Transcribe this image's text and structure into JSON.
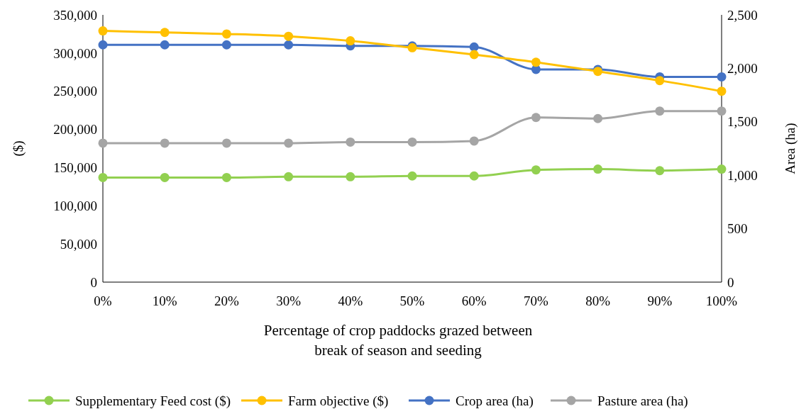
{
  "chart_data": {
    "type": "line",
    "xlabel": "Percentage of crop paddocks grazed between break of season and seeding",
    "ylabel": "($)",
    "y2label": "Area (ha)",
    "categories": [
      "0%",
      "10%",
      "20%",
      "30%",
      "40%",
      "50%",
      "60%",
      "70%",
      "80%",
      "90%",
      "100%"
    ],
    "series": [
      {
        "name": "Supplementary Feed cost ($)",
        "color": "#92d050",
        "values": [
          137000,
          137000,
          137000,
          138000,
          138000,
          139000,
          139000,
          147000,
          148000,
          146000,
          148000
        ]
      },
      {
        "name": "Farm objective ($)",
        "color": "#ffc000",
        "values": [
          329000,
          327000,
          325000,
          322000,
          316000,
          307000,
          298000,
          288000,
          276000,
          264000,
          250000
        ]
      },
      {
        "name": "Crop area (ha)",
        "color": "#4472c4",
        "axis": "y2",
        "values": [
          2220,
          2220,
          2220,
          2220,
          2210,
          2210,
          2200,
          1990,
          1990,
          1920,
          1920
        ]
      },
      {
        "name": "Pasture area (ha)",
        "color": "#a5a5a5",
        "axis": "y2",
        "values": [
          1300,
          1300,
          1300,
          1300,
          1310,
          1310,
          1320,
          1540,
          1530,
          1600,
          1600
        ]
      }
    ],
    "ylim": [
      0,
      350000
    ],
    "yticks": [
      {
        "value": 0,
        "label": "0"
      },
      {
        "value": 50000,
        "label": "50,000"
      },
      {
        "value": 100000,
        "label": "100,000"
      },
      {
        "value": 150000,
        "label": "150,000"
      },
      {
        "value": 200000,
        "label": "200,000"
      },
      {
        "value": 250000,
        "label": "250,000"
      },
      {
        "value": 300000,
        "label": "300,000"
      },
      {
        "value": 350000,
        "label": "350,000"
      }
    ],
    "y2lim": [
      0,
      2500
    ],
    "y2ticks": [
      {
        "value": 0,
        "label": "0"
      },
      500,
      {
        "value": 1000,
        "label": "1,000"
      },
      {
        "value": 1500,
        "label": "1,500"
      },
      {
        "value": 2000,
        "label": "2,000"
      },
      {
        "value": 2500,
        "label": "2,500"
      }
    ],
    "marker": "circle",
    "legend": "bottom",
    "grid": false
  }
}
